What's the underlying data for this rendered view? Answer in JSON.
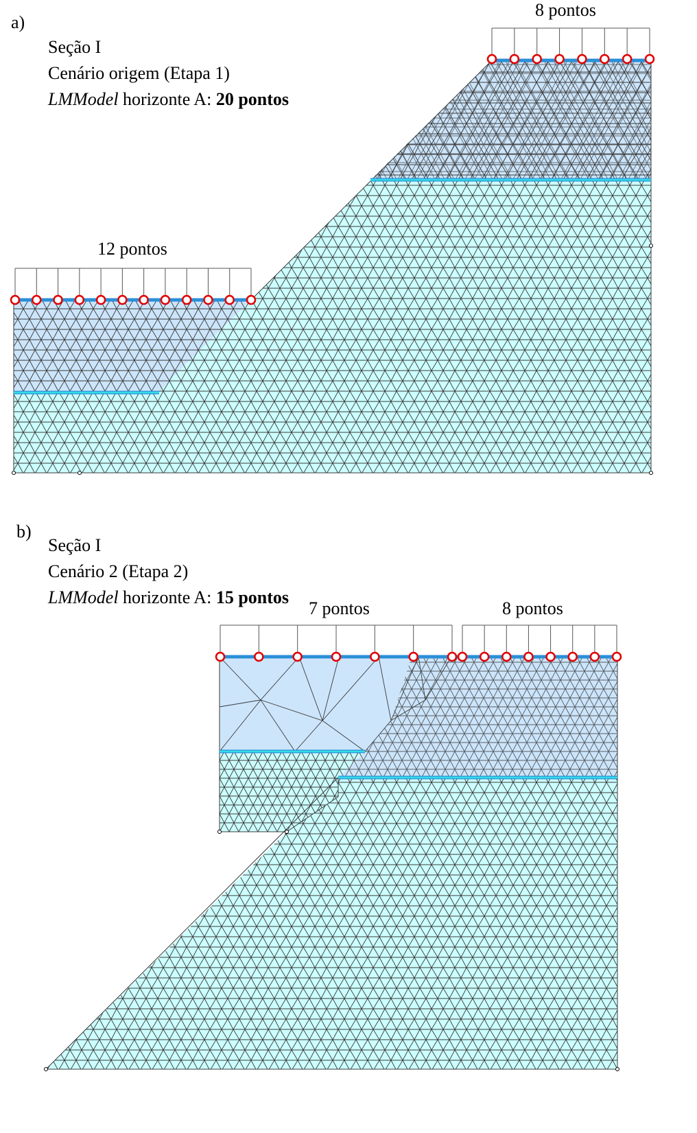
{
  "panel_a": {
    "tag": "a)",
    "section": "Seção I",
    "scenario": "Cenário origem (Etapa 1)",
    "model_italic": "LMModel",
    "model_text": " horizonte A: ",
    "model_count": "20 pontos",
    "group_left_label": "12 pontos",
    "group_right_label": "8 pontos",
    "group_left_points": 12,
    "group_right_points": 8
  },
  "panel_b": {
    "tag": "b)",
    "section": "Seção I",
    "scenario": "Cenário 2 (Etapa 2)",
    "model_italic": "LMModel",
    "model_text": " horizonte A: ",
    "model_count": "15 pontos",
    "group_left_label": "7 pontos",
    "group_right_label": "8 pontos",
    "group_left_points": 7,
    "group_right_points": 8
  },
  "colors": {
    "lower_layer": "#ccffff",
    "upper_layer": "#cce5fb",
    "mesh_line": "#3a3a3a",
    "horizon_line": "#2a8fd8",
    "interface_line": "#33dde8",
    "point_marker": "#e00000"
  }
}
